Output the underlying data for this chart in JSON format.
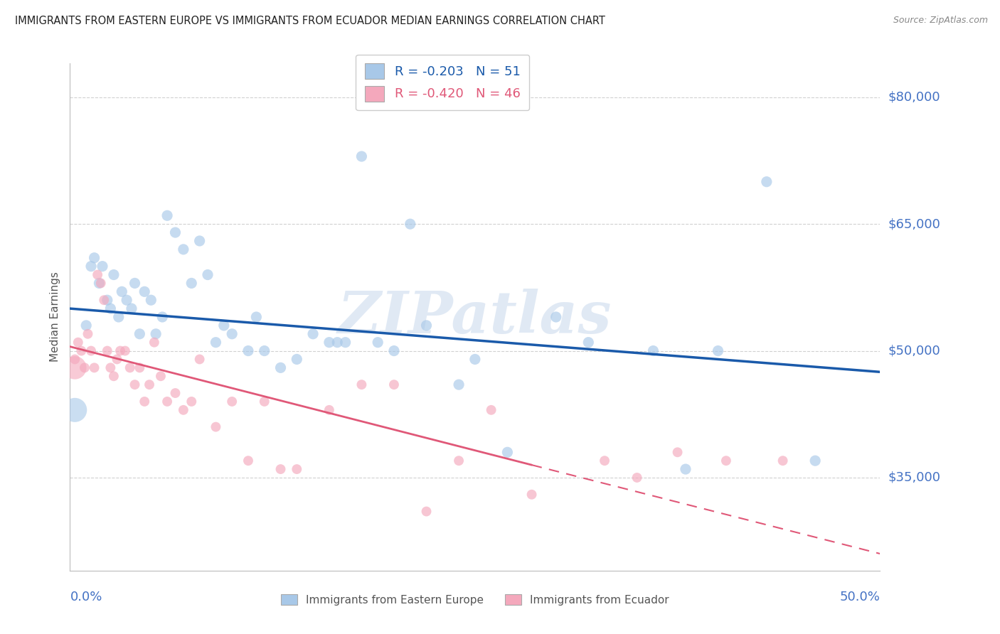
{
  "title": "IMMIGRANTS FROM EASTERN EUROPE VS IMMIGRANTS FROM ECUADOR MEDIAN EARNINGS CORRELATION CHART",
  "source": "Source: ZipAtlas.com",
  "ylabel": "Median Earnings",
  "yticks": [
    35000,
    50000,
    65000,
    80000
  ],
  "ytick_labels": [
    "$35,000",
    "$50,000",
    "$65,000",
    "$80,000"
  ],
  "ylim": [
    24000,
    84000
  ],
  "xlim": [
    0.0,
    50.0
  ],
  "watermark": "ZIPatlas",
  "r_blue": "R = -0.203",
  "n_blue": "N = 51",
  "r_pink": "R = -0.420",
  "n_pink": "N = 46",
  "legend_blue_label": "Immigrants from Eastern Europe",
  "legend_pink_label": "Immigrants from Ecuador",
  "blue_scatter_color": "#a8c8e8",
  "pink_scatter_color": "#f4a8bc",
  "blue_line_color": "#1a5aaa",
  "pink_line_color": "#e05878",
  "axis_label_color": "#4472c4",
  "title_color": "#222222",
  "source_color": "#888888",
  "grid_color": "#cccccc",
  "watermark_color": "#c8d8ec",
  "blue_scatter_x": [
    1.0,
    1.3,
    1.5,
    1.8,
    2.0,
    2.3,
    2.5,
    2.7,
    3.0,
    3.2,
    3.5,
    3.8,
    4.0,
    4.3,
    4.6,
    5.0,
    5.3,
    5.7,
    6.0,
    6.5,
    7.0,
    7.5,
    8.0,
    8.5,
    9.0,
    9.5,
    10.0,
    11.0,
    11.5,
    12.0,
    13.0,
    14.0,
    15.0,
    16.0,
    16.5,
    17.0,
    18.0,
    19.0,
    20.0,
    21.0,
    22.0,
    24.0,
    25.0,
    27.0,
    30.0,
    32.0,
    36.0,
    38.0,
    40.0,
    43.0,
    46.0
  ],
  "blue_scatter_y": [
    53000,
    60000,
    61000,
    58000,
    60000,
    56000,
    55000,
    59000,
    54000,
    57000,
    56000,
    55000,
    58000,
    52000,
    57000,
    56000,
    52000,
    54000,
    66000,
    64000,
    62000,
    58000,
    63000,
    59000,
    51000,
    53000,
    52000,
    50000,
    54000,
    50000,
    48000,
    49000,
    52000,
    51000,
    51000,
    51000,
    73000,
    51000,
    50000,
    65000,
    53000,
    46000,
    49000,
    38000,
    54000,
    51000,
    50000,
    36000,
    50000,
    70000,
    37000
  ],
  "blue_big_dot_x": 0.3,
  "blue_big_dot_y": 43000,
  "blue_big_dot_size": 600,
  "pink_scatter_x": [
    0.3,
    0.5,
    0.7,
    0.9,
    1.1,
    1.3,
    1.5,
    1.7,
    1.9,
    2.1,
    2.3,
    2.5,
    2.7,
    2.9,
    3.1,
    3.4,
    3.7,
    4.0,
    4.3,
    4.6,
    4.9,
    5.2,
    5.6,
    6.0,
    6.5,
    7.0,
    7.5,
    8.0,
    9.0,
    10.0,
    11.0,
    12.0,
    13.0,
    14.0,
    16.0,
    18.0,
    20.0,
    22.0,
    24.0,
    26.0,
    28.5,
    33.0,
    35.0,
    37.5,
    40.5,
    44.0
  ],
  "pink_scatter_y": [
    49000,
    51000,
    50000,
    48000,
    52000,
    50000,
    48000,
    59000,
    58000,
    56000,
    50000,
    48000,
    47000,
    49000,
    50000,
    50000,
    48000,
    46000,
    48000,
    44000,
    46000,
    51000,
    47000,
    44000,
    45000,
    43000,
    44000,
    49000,
    41000,
    44000,
    37000,
    44000,
    36000,
    36000,
    43000,
    46000,
    46000,
    31000,
    37000,
    43000,
    33000,
    37000,
    35000,
    38000,
    37000,
    37000
  ],
  "pink_big_dot_x": 0.3,
  "pink_big_dot_y": 48000,
  "pink_big_dot_size": 550,
  "blue_trendline_x0": 0.0,
  "blue_trendline_x1": 50.0,
  "blue_trendline_y0": 55000,
  "blue_trendline_y1": 47500,
  "pink_trendline_solid_x0": 0.0,
  "pink_trendline_solid_x1": 28.5,
  "pink_trendline_y0": 50500,
  "pink_trendline_y1": 36500,
  "pink_trendline_dash_x0": 28.5,
  "pink_trendline_dash_x1": 50.0,
  "pink_trendline_dash_y0": 36500,
  "pink_trendline_dash_y1": 26000
}
